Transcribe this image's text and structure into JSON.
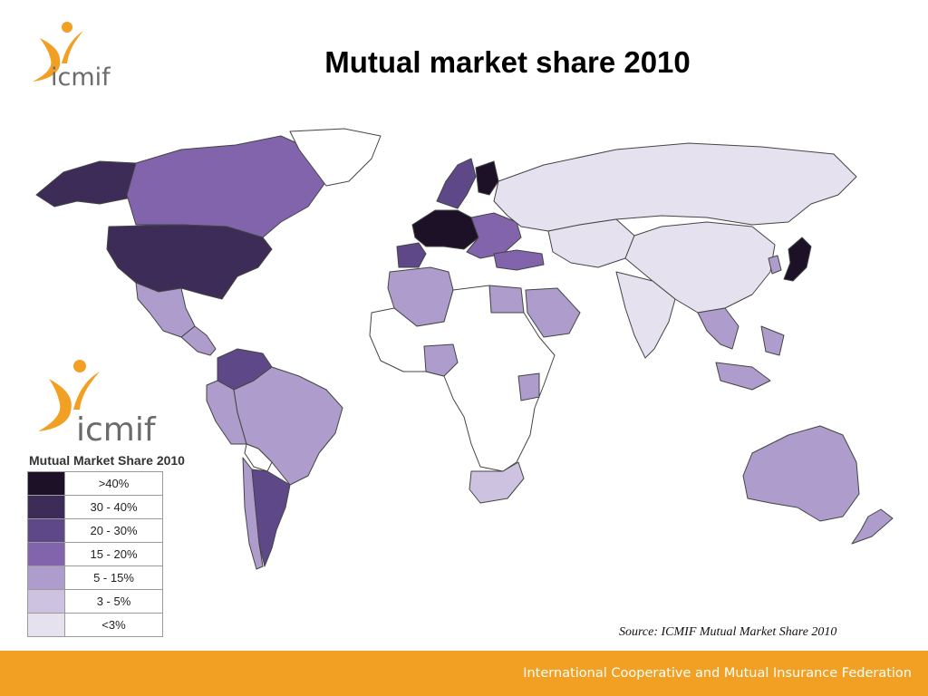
{
  "slide_title": "Mutual market share 2010",
  "logo_text": "icmif",
  "legend": {
    "title": "Mutual Market Share 2010",
    "items": [
      {
        "label": ">40%",
        "color": "#1d1127"
      },
      {
        "label": "30 - 40%",
        "color": "#3d2c57"
      },
      {
        "label": "20 - 30%",
        "color": "#5e4888"
      },
      {
        "label": "15 - 20%",
        "color": "#8264ad"
      },
      {
        "label": "5 - 15%",
        "color": "#ae9dcc"
      },
      {
        "label": "3 - 5%",
        "color": "#cdc3e0"
      },
      {
        "label": "<3%",
        "color": "#e6e1ef"
      }
    ]
  },
  "source": "Source: ICMIF Mutual Market Share 2010",
  "footer": "International Cooperative and Mutual Insurance Federation",
  "colors": {
    "accent_orange": "#f2a024",
    "no_data": "#ffffff",
    "border": "#444444"
  },
  "map_regions": [
    {
      "name": "alaska",
      "level": "30 - 40%"
    },
    {
      "name": "canada",
      "level": "15 - 20%"
    },
    {
      "name": "usa",
      "level": "30 - 40%"
    },
    {
      "name": "greenland",
      "level": "none"
    },
    {
      "name": "mexico",
      "level": "5 - 15%"
    },
    {
      "name": "central-america",
      "level": "5 - 15%"
    },
    {
      "name": "colombia-venezuela",
      "level": "20 - 30%"
    },
    {
      "name": "ecuador-peru",
      "level": "5 - 15%"
    },
    {
      "name": "brazil",
      "level": "5 - 15%"
    },
    {
      "name": "argentina",
      "level": "20 - 30%"
    },
    {
      "name": "chile",
      "level": "5 - 15%"
    },
    {
      "name": "bolivia-paraguay",
      "level": "none"
    },
    {
      "name": "western-europe",
      "level": ">40%"
    },
    {
      "name": "scandinavia",
      "level": "20 - 30%"
    },
    {
      "name": "finland",
      "level": ">40%"
    },
    {
      "name": "iberia",
      "level": "20 - 30%"
    },
    {
      "name": "eastern-europe",
      "level": "15 - 20%"
    },
    {
      "name": "turkey",
      "level": "15 - 20%"
    },
    {
      "name": "russia",
      "level": "<3%"
    },
    {
      "name": "central-asia",
      "level": "<3%"
    },
    {
      "name": "china",
      "level": "<3%"
    },
    {
      "name": "india",
      "level": "<3%"
    },
    {
      "name": "japan",
      "level": ">40%"
    },
    {
      "name": "korea",
      "level": "5 - 15%"
    },
    {
      "name": "southeast-asia",
      "level": "5 - 15%"
    },
    {
      "name": "north-africa",
      "level": "5 - 15%"
    },
    {
      "name": "africa",
      "level": "none"
    },
    {
      "name": "egypt",
      "level": "5 - 15%"
    },
    {
      "name": "saudi-arabia",
      "level": "5 - 15%"
    },
    {
      "name": "nigeria",
      "level": "5 - 15%"
    },
    {
      "name": "kenya",
      "level": "5 - 15%"
    },
    {
      "name": "south-africa",
      "level": "3 - 5%"
    },
    {
      "name": "australia",
      "level": "5 - 15%"
    },
    {
      "name": "new-zealand",
      "level": "5 - 15%"
    }
  ]
}
